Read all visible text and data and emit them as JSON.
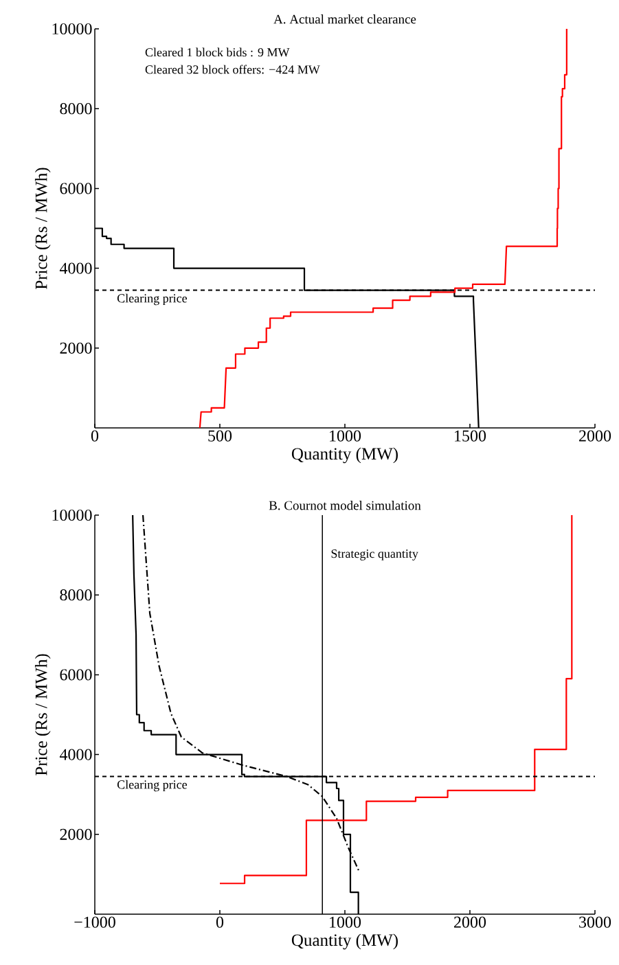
{
  "chart_data": [
    {
      "type": "line",
      "title": "A. Actual market clearance",
      "xlabel": "Quantity (MW)",
      "ylabel": "Price (Rs / MWh)",
      "xlim": [
        0,
        2000
      ],
      "ylim": [
        0,
        10000
      ],
      "xticks": [
        0,
        500,
        1000,
        1500,
        2000
      ],
      "yticks": [
        2000,
        4000,
        6000,
        8000,
        10000
      ],
      "series": [
        {
          "color": "#000000",
          "x": [
            0,
            30,
            30,
            47,
            47,
            65,
            65,
            117,
            117,
            316,
            316,
            838,
            838,
            1438,
            1438,
            1514,
            1514,
            1527,
            1535
          ],
          "values": [
            5000,
            5000,
            4800,
            4800,
            4750,
            4750,
            4600,
            4600,
            4500,
            4500,
            4000,
            4000,
            3450,
            3450,
            3300,
            3300,
            3200,
            1260,
            0
          ]
        },
        {
          "color": "#ff0000",
          "x": [
            420,
            425,
            466,
            466,
            518,
            525,
            563,
            563,
            600,
            600,
            654,
            654,
            686,
            686,
            701,
            701,
            755,
            755,
            783,
            783,
            1113,
            1113,
            1191,
            1191,
            1260,
            1260,
            1343,
            1343,
            1440,
            1440,
            1511,
            1511,
            1640,
            1646,
            1849,
            1849,
            1850,
            1850,
            1853,
            1853,
            1856,
            1856,
            1866,
            1866,
            1870,
            1870,
            1879,
            1879,
            1887,
            1887
          ],
          "values": [
            0,
            400,
            400,
            500,
            500,
            1500,
            1500,
            1850,
            1850,
            2000,
            2000,
            2150,
            2150,
            2500,
            2500,
            2750,
            2750,
            2800,
            2800,
            2900,
            2900,
            3000,
            3000,
            3200,
            3200,
            3300,
            3300,
            3400,
            3400,
            3500,
            3500,
            3600,
            3600,
            4550,
            4550,
            5000,
            5000,
            5500,
            5500,
            6000,
            6000,
            7000,
            7000,
            8300,
            8300,
            8500,
            8500,
            8850,
            8850,
            10000
          ]
        }
      ],
      "ref_lines": [
        {
          "axis": "y",
          "value": 3450,
          "label": "Clearing price",
          "line_style": "dashed"
        }
      ],
      "annotations": [
        "Cleared 1 block bids : 9 MW",
        "Cleared 32 block offers: −424 MW"
      ]
    },
    {
      "type": "line",
      "title": "B. Cournot model simulation",
      "xlabel": "Quantity (MW)",
      "ylabel": "Price (Rs / MWh)",
      "xlim": [
        -1000,
        3000
      ],
      "ylim": [
        0,
        10000
      ],
      "xticks": [
        {
          "value": -1000,
          "label": "−1000"
        },
        0,
        1000,
        2000,
        3000
      ],
      "yticks": [
        2000,
        4000,
        6000,
        8000,
        10000
      ],
      "series": [
        {
          "color": "#000000",
          "x": [
            -697,
            -687,
            -670,
            -665,
            -644,
            -644,
            -606,
            -606,
            -549,
            -549,
            -350,
            -350,
            176,
            176,
            197,
            197,
            852,
            852,
            934,
            934,
            951,
            951,
            989,
            989,
            1044,
            1044,
            1108,
            1108
          ],
          "values": [
            10000,
            8500,
            7000,
            5000,
            5000,
            4800,
            4800,
            4600,
            4600,
            4500,
            4500,
            4000,
            4000,
            3500,
            3500,
            3450,
            3450,
            3300,
            3300,
            3150,
            3150,
            2850,
            2850,
            2000,
            2000,
            550,
            550,
            0
          ]
        },
        {
          "color": "#000000",
          "line_style": "dashdot",
          "x": [
            -615,
            -560,
            -486,
            -391,
            -308,
            -139,
            177,
            535,
            703,
            819,
            934,
            1027,
            1114
          ],
          "values": [
            10000,
            7540,
            6220,
            5030,
            4440,
            4040,
            3740,
            3450,
            3250,
            2950,
            2400,
            1670,
            1070
          ]
        },
        {
          "color": "#ff0000",
          "x": [
            0,
            198,
            198,
            692,
            692,
            1172,
            1172,
            1566,
            1566,
            1822,
            1822,
            2518,
            2518,
            2771,
            2771,
            2815,
            2815
          ],
          "values": [
            770,
            770,
            970,
            970,
            2350,
            2350,
            2830,
            2830,
            2930,
            2930,
            3100,
            3100,
            4130,
            4130,
            5900,
            5900,
            10000
          ]
        }
      ],
      "ref_lines": [
        {
          "axis": "y",
          "value": 3450,
          "label": "Clearing price",
          "line_style": "dashed"
        },
        {
          "axis": "x",
          "value": 820,
          "label": "Strategic quantity",
          "line_style": "solid"
        }
      ]
    }
  ]
}
